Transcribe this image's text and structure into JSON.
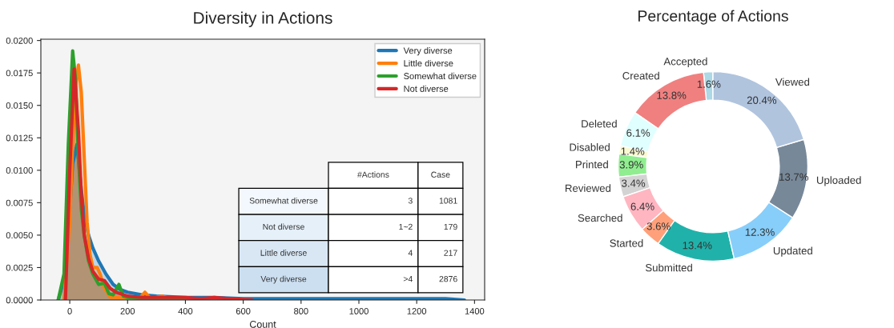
{
  "chart_data": [
    {
      "type": "area",
      "title": "Diversity in Actions",
      "xlabel": "Count",
      "xlim": [
        -100,
        1435
      ],
      "xticks": [
        0,
        200,
        400,
        600,
        800,
        1000,
        1200,
        1400
      ],
      "ylim": [
        0,
        0.0201
      ],
      "yticks": [
        {
          "value": 0,
          "label": "0.0000"
        },
        {
          "value": 0.0025,
          "label": "0.0025"
        },
        {
          "value": 0.005,
          "label": "0.0050"
        },
        {
          "value": 0.0075,
          "label": "0.0075"
        },
        {
          "value": 0.01,
          "label": "0.0100"
        },
        {
          "value": 0.0125,
          "label": "0.0125"
        },
        {
          "value": 0.015,
          "label": "0.0150"
        },
        {
          "value": 0.0175,
          "label": "0.0175"
        },
        {
          "value": 0.02,
          "label": "0.0200"
        }
      ],
      "grid": false,
      "legend": "top right",
      "series": [
        {
          "name": "Very diverse",
          "color": "#1f77b4",
          "x": [
            -40,
            -20,
            0,
            10,
            25,
            40,
            50,
            65,
            80,
            100,
            125,
            150,
            175,
            200,
            250,
            300,
            400,
            500,
            600,
            700,
            800,
            900,
            1000,
            1100,
            1200,
            1300,
            1365
          ],
          "values": [
            0,
            0.0015,
            0.007,
            0.0105,
            0.012,
            0.0085,
            0.0065,
            0.005,
            0.004,
            0.003,
            0.002,
            0.0012,
            0.0008,
            0.0006,
            0.0004,
            0.0003,
            0.0002,
            0.0002,
            0.0001,
            0.0001,
            0.0001,
            0.0001,
            0.0001,
            0.0001,
            0.0001,
            0.0001,
            0
          ]
        },
        {
          "name": "Little diverse",
          "color": "#ff7f0e",
          "x": [
            -20,
            0,
            10,
            20,
            30,
            40,
            50,
            60,
            70,
            80,
            95,
            105,
            120,
            140,
            160,
            200,
            240,
            260,
            280,
            320,
            350,
            360
          ],
          "values": [
            0,
            0.006,
            0.012,
            0.0165,
            0.0181,
            0.016,
            0.011,
            0.006,
            0.0035,
            0.0025,
            0.0025,
            0.002,
            0.0009,
            0.0002,
            0.0002,
            0.0001,
            0.0001,
            0.0006,
            0.0001,
            0.0003,
            0.0001,
            0
          ]
        },
        {
          "name": "Somewhat diverse",
          "color": "#2ca02c",
          "x": [
            -40,
            -20,
            -5,
            10,
            20,
            30,
            40,
            50,
            65,
            80,
            100,
            120,
            135,
            150,
            170,
            185,
            200,
            250,
            300,
            400,
            500,
            600
          ],
          "values": [
            0,
            0.002,
            0.012,
            0.0192,
            0.017,
            0.011,
            0.007,
            0.005,
            0.003,
            0.002,
            0.0012,
            0.0013,
            0.0005,
            0.0004,
            0.0012,
            0.0003,
            0.0002,
            0.0001,
            0.0001,
            0.0001,
            0,
            0
          ]
        },
        {
          "name": "Not diverse",
          "color": "#d62728",
          "x": [
            -15,
            0,
            15,
            30,
            40,
            50,
            65,
            80,
            100,
            120,
            140,
            160,
            200,
            250,
            300,
            400,
            450,
            500,
            550,
            630
          ],
          "values": [
            0,
            0.01,
            0.0178,
            0.013,
            0.008,
            0.005,
            0.0032,
            0.0022,
            0.0016,
            0.0015,
            0.0009,
            0.0006,
            0.0003,
            0.0002,
            0.0002,
            0.0002,
            0.0001,
            0.0002,
            0.0001,
            0
          ]
        }
      ],
      "annotations": [
        "#Actions",
        "Case",
        "Somewhat diverse",
        "3",
        "1081",
        "Not diverse",
        "1~2",
        "179",
        "Little diverse",
        "4",
        "217",
        "Very diverse",
        ">4",
        "2876"
      ]
    },
    {
      "type": "donut",
      "title": "Percentage of Actions",
      "categories": [
        "Accepted",
        "Created",
        "Deleted",
        "Disabled",
        "Printed",
        "Reviewed",
        "Searched",
        "Started",
        "Submitted",
        "Updated",
        "Uploaded",
        "Viewed"
      ],
      "values": [
        1.6,
        13.8,
        6.1,
        1.4,
        3.9,
        3.4,
        6.4,
        3.6,
        13.4,
        12.3,
        13.7,
        20.4
      ],
      "value_labels": [
        "1.6%",
        "13.8%",
        "6.1%",
        "1.4%",
        "3.9%",
        "3.4%",
        "6.4%",
        "3.6%",
        "13.4%",
        "12.3%",
        "13.7%",
        "20.4%"
      ],
      "colors": [
        "#add8e6",
        "#f08080",
        "#e0ffff",
        "#fafad2",
        "#90ee90",
        "#d3d3d3",
        "#ffb6c1",
        "#ffa07a",
        "#20b2aa",
        "#87cefa",
        "#778899",
        "#b0c4de"
      ]
    }
  ]
}
